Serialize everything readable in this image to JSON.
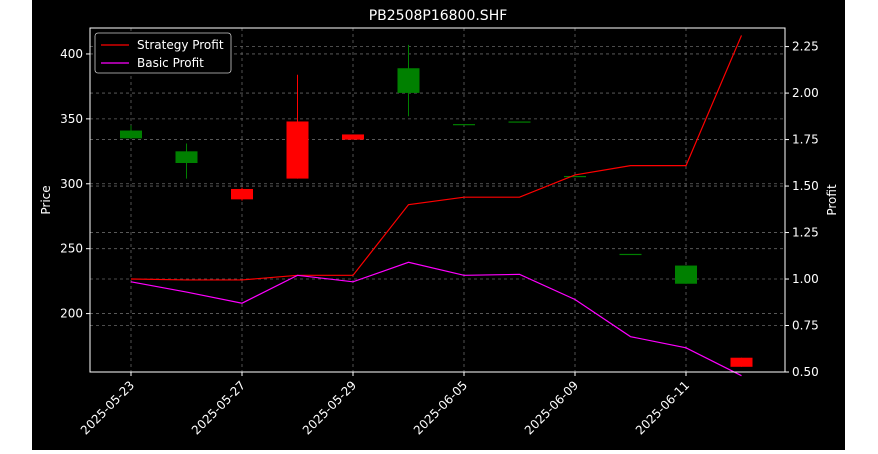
{
  "chart_data": {
    "type": "candlestick+line",
    "title": "PB2508P16800.SHF",
    "xlabel": "",
    "ylabel": "Price",
    "y2label": "Profit",
    "ylim": [
      155,
      420
    ],
    "y2lim": [
      0.5,
      2.35
    ],
    "yticks": [
      200,
      250,
      300,
      350,
      400
    ],
    "y2ticks": [
      "0.50",
      "0.75",
      "1.00",
      "1.25",
      "1.50",
      "1.75",
      "2.00",
      "2.25"
    ],
    "xticks": [
      "2025-05-23",
      "2025-05-27",
      "2025-05-29",
      "2025-06-05",
      "2025-06-09",
      "2025-06-11"
    ],
    "grid": true,
    "legend_position": "top-left",
    "colors": {
      "background": "#000000",
      "text": "#ffffff",
      "grid": "#666666",
      "up": "#008000",
      "down": "#ff0000",
      "strategy": "#ff0000",
      "basic": "#ff00ff"
    },
    "candles": [
      {
        "date": "2025-05-23",
        "open": 335,
        "high": 345,
        "low": 335,
        "close": 341
      },
      {
        "date": "2025-05-26",
        "open": 316,
        "high": 331,
        "low": 304,
        "close": 325
      },
      {
        "date": "2025-05-27",
        "open": 296,
        "high": 297,
        "low": 287,
        "close": 288
      },
      {
        "date": "2025-05-28",
        "open": 348,
        "high": 384,
        "low": 304,
        "close": 304
      },
      {
        "date": "2025-05-29",
        "open": 338,
        "high": 338,
        "low": 334,
        "close": 334
      },
      {
        "date": "2025-05-30",
        "open": 370,
        "high": 407,
        "low": 352,
        "close": 389
      },
      {
        "date": "2025-06-05",
        "open": 346,
        "high": 346,
        "low": 346,
        "close": 346
      },
      {
        "date": "2025-06-06",
        "open": 348,
        "high": 348,
        "low": 348,
        "close": 348
      },
      {
        "date": "2025-06-09",
        "open": 306,
        "high": 306,
        "low": 306,
        "close": 306
      },
      {
        "date": "2025-06-10",
        "open": 246,
        "high": 246,
        "low": 246,
        "close": 246
      },
      {
        "date": "2025-06-11",
        "open": 223,
        "high": 237,
        "low": 223,
        "close": 237
      },
      {
        "date": "2025-06-12",
        "open": 166,
        "high": 166,
        "low": 159,
        "close": 159
      }
    ],
    "series": [
      {
        "name": "Strategy Profit",
        "color": "#ff0000",
        "values": [
          1.0,
          0.995,
          0.995,
          1.02,
          1.02,
          1.4,
          1.44,
          1.44,
          1.56,
          1.61,
          1.61,
          2.31
        ]
      },
      {
        "name": "Basic Profit",
        "color": "#ff00ff",
        "values": [
          0.985,
          0.93,
          0.87,
          1.02,
          0.985,
          1.09,
          1.02,
          1.025,
          0.89,
          0.69,
          0.63,
          0.48
        ]
      }
    ]
  }
}
